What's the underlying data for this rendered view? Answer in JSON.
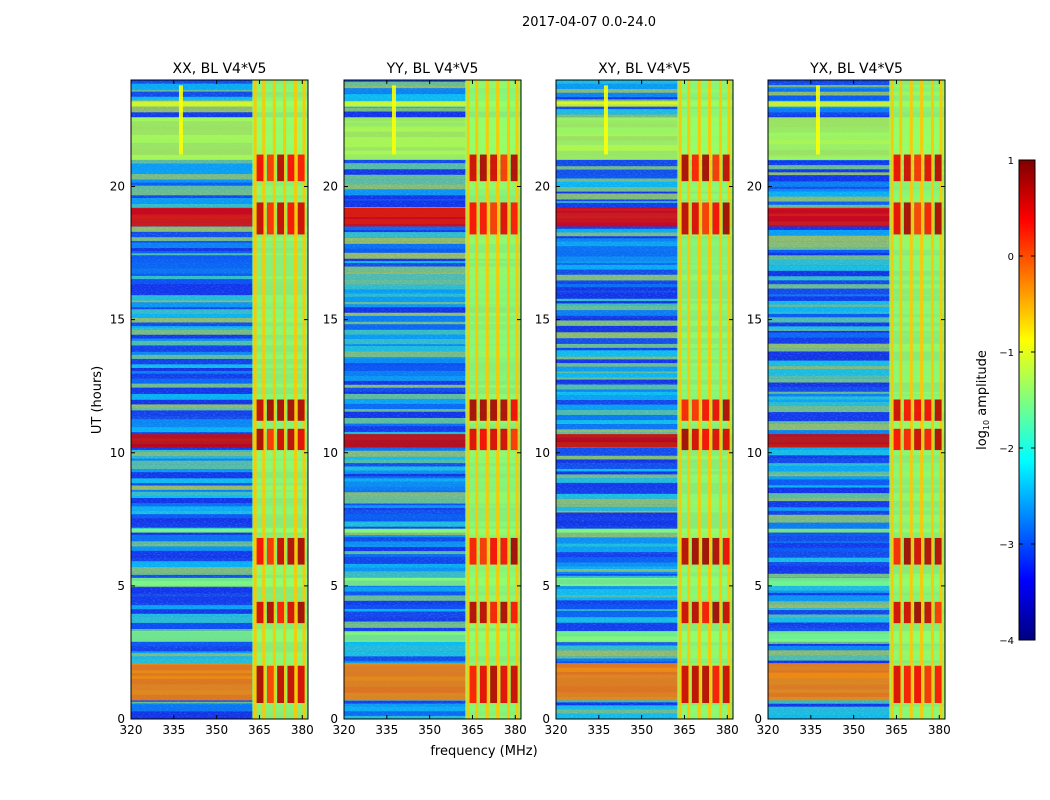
{
  "figure": {
    "suptitle": "2017-04-07 0.0-24.0",
    "shared_ylabel": "UT (hours)",
    "shared_xlabel": "frequency (MHz)"
  },
  "colorbar": {
    "label_prefix": "log",
    "label_sub": "10",
    "label_suffix": " amplitude",
    "ticks": [
      {
        "value": 1,
        "label": "1"
      },
      {
        "value": 0,
        "label": "0"
      },
      {
        "value": -1,
        "label": "−1"
      },
      {
        "value": -2,
        "label": "−2"
      },
      {
        "value": -3,
        "label": "−3"
      },
      {
        "value": -4,
        "label": "−4"
      }
    ],
    "range": [
      -4,
      1
    ],
    "colormap": "jet",
    "colormap_stops": [
      "#00007f",
      "#0000ff",
      "#007fff",
      "#00ffff",
      "#7fff7f",
      "#ffff00",
      "#ff7f00",
      "#ff0000",
      "#7f0000"
    ]
  },
  "chart_data": [
    {
      "type": "heatmap",
      "title": "XX, BL V4*V5",
      "xlabel": "frequency (MHz)",
      "ylabel": "UT (hours)",
      "xlim": [
        320,
        382
      ],
      "ylim": [
        0,
        24
      ],
      "x_ticks": [
        320,
        335,
        350,
        365,
        380
      ],
      "y_ticks": [
        0,
        5,
        10,
        15,
        20
      ],
      "value_range_log10": [
        -4,
        1
      ]
    },
    {
      "type": "heatmap",
      "title": "YY, BL V4*V5",
      "xlabel": "frequency (MHz)",
      "ylim": [
        0,
        24
      ],
      "xlim": [
        320,
        382
      ],
      "x_ticks": [
        320,
        335,
        350,
        365,
        380
      ],
      "y_ticks": [
        0,
        5,
        10,
        15,
        20
      ],
      "value_range_log10": [
        -4,
        1
      ]
    },
    {
      "type": "heatmap",
      "title": "XY, BL V4*V5",
      "xlabel": "frequency (MHz)",
      "ylim": [
        0,
        24
      ],
      "xlim": [
        320,
        382
      ],
      "x_ticks": [
        320,
        335,
        350,
        365,
        380
      ],
      "y_ticks": [
        0,
        5,
        10,
        15,
        20
      ],
      "value_range_log10": [
        -4,
        1
      ]
    },
    {
      "type": "heatmap",
      "title": "YX, BL V4*V5",
      "xlabel": "frequency (MHz)",
      "ylim": [
        0,
        24
      ],
      "xlim": [
        320,
        382
      ],
      "x_ticks": [
        320,
        335,
        350,
        365,
        380
      ],
      "y_ticks": [
        0,
        5,
        10,
        15,
        20
      ],
      "value_range_log10": [
        -4,
        1
      ]
    }
  ]
}
